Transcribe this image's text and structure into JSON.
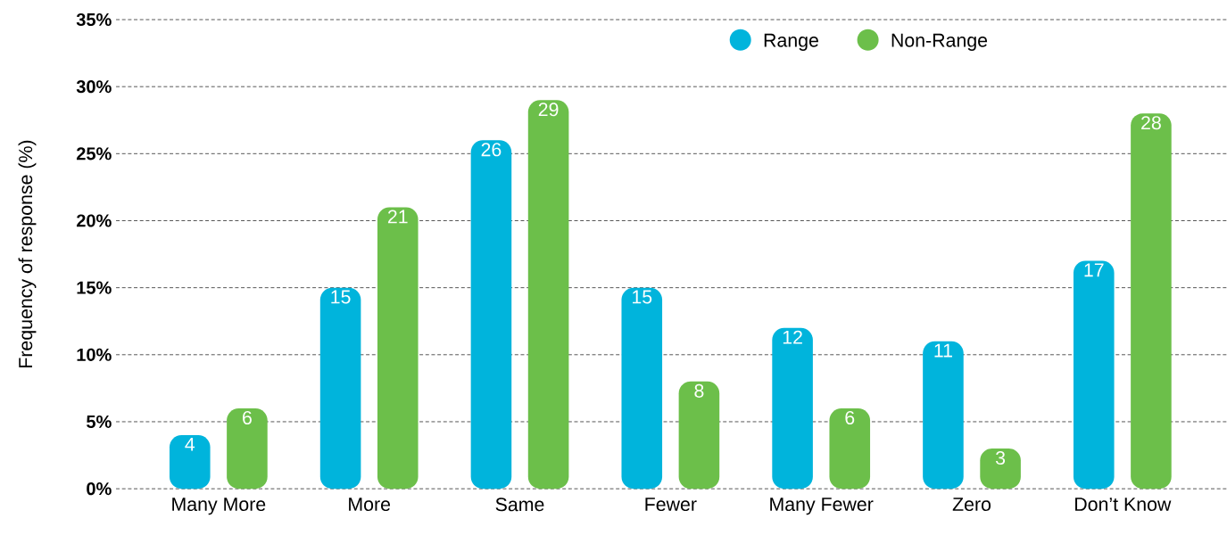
{
  "chart_data": {
    "type": "bar",
    "ylabel": "Frequency of response (%)",
    "categories": [
      "Many More",
      "More",
      "Same",
      "Fewer",
      "Many Fewer",
      "Zero",
      "Don’t Know"
    ],
    "series": [
      {
        "name": "Range",
        "color": "#00b4dc",
        "values": [
          4,
          15,
          26,
          15,
          12,
          11,
          17
        ]
      },
      {
        "name": "Non-Range",
        "color": "#6cbf4a",
        "values": [
          6,
          21,
          29,
          8,
          6,
          3,
          28
        ]
      }
    ],
    "ylim": [
      0,
      35
    ],
    "yticks": [
      {
        "value": 0,
        "label": "0%"
      },
      {
        "value": 5,
        "label": "5%"
      },
      {
        "value": 10,
        "label": "10%"
      },
      {
        "value": 15,
        "label": "15%"
      },
      {
        "value": 20,
        "label": "20%"
      },
      {
        "value": 25,
        "label": "25%"
      },
      {
        "value": 30,
        "label": "30%"
      },
      {
        "value": 35,
        "label": "35%"
      }
    ],
    "grid": "y",
    "legend": "top",
    "data_labels": true
  }
}
